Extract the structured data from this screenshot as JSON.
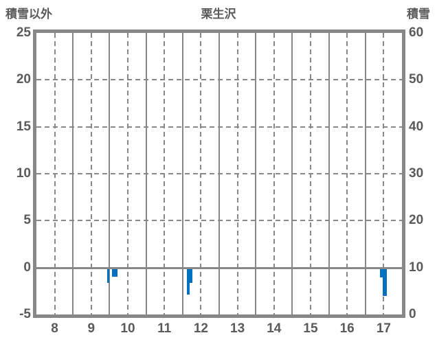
{
  "header": {
    "left_axis_title": "積雪以外",
    "chart_title": "栗生沢",
    "right_axis_title": "積雪"
  },
  "chart_data": {
    "type": "bar",
    "title": "栗生沢",
    "left_axis": {
      "title": "積雪以外",
      "min": -5,
      "max": 25,
      "ticks": [
        25,
        20,
        15,
        10,
        5,
        0,
        -5
      ]
    },
    "right_axis": {
      "title": "積雪",
      "min": 0,
      "max": 60,
      "ticks": [
        60,
        50,
        40,
        30,
        20,
        10,
        0
      ]
    },
    "x_axis": {
      "min": 7.5,
      "max": 17.5,
      "ticks": [
        8,
        9,
        10,
        11,
        12,
        13,
        14,
        15,
        16,
        17
      ]
    },
    "grid": {
      "vertical_solid_at_boundaries": true,
      "vertical_dashed_at_tick_centers": true,
      "horizontal_dashed_every": 5,
      "zero_line_solid": true
    },
    "legend": "none",
    "series": [
      {
        "axis": "left",
        "color": "#0070C0",
        "bars": [
          {
            "x_start": 9.43,
            "x_end": 9.5,
            "value": -1.6
          },
          {
            "x_start": 9.56,
            "x_end": 9.71,
            "value": -0.95
          },
          {
            "x_start": 11.61,
            "x_end": 11.69,
            "value": -2.9
          },
          {
            "x_start": 11.69,
            "x_end": 11.77,
            "value": -1.6
          },
          {
            "x_start": 16.89,
            "x_end": 16.97,
            "value": -1.05
          },
          {
            "x_start": 16.97,
            "x_end": 17.08,
            "value": -3.0
          }
        ]
      }
    ]
  },
  "colors": {
    "bar": "#0070C0",
    "gridline": "#878787",
    "text": "#5a5a5a",
    "background": "#ffffff"
  }
}
